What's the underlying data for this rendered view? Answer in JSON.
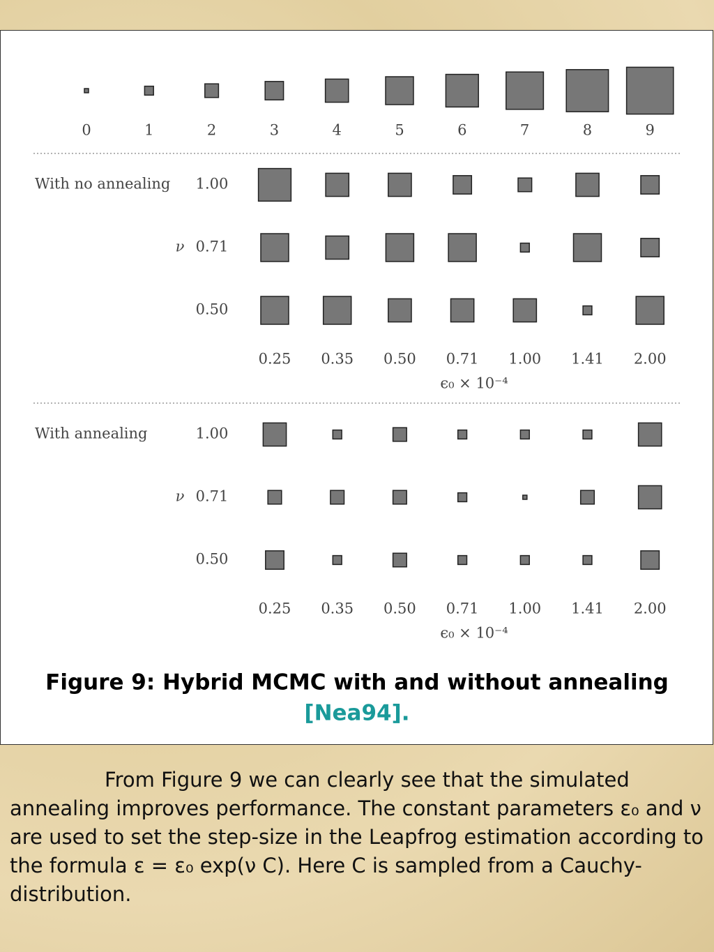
{
  "figure": {
    "legend": {
      "values": [
        0,
        1,
        2,
        3,
        4,
        5,
        6,
        7,
        8,
        9
      ]
    },
    "panels": [
      {
        "label": "With no annealing",
        "nu_symbol": "ν",
        "nu_values": [
          "1.00",
          "0.71",
          "0.50"
        ],
        "eps_values": [
          "0.25",
          "0.35",
          "0.50",
          "0.71",
          "1.00",
          "1.41",
          "2.00"
        ],
        "xlabel": "ϵ₀ × 10⁻⁴",
        "cells": [
          [
            6,
            4,
            4,
            3,
            2,
            4,
            3
          ],
          [
            5,
            4,
            5,
            5,
            1,
            5,
            3
          ],
          [
            5,
            5,
            4,
            4,
            4,
            1,
            5
          ]
        ]
      },
      {
        "label": "With annealing",
        "nu_symbol": "ν",
        "nu_values": [
          "1.00",
          "0.71",
          "0.50"
        ],
        "eps_values": [
          "0.25",
          "0.35",
          "0.50",
          "0.71",
          "1.00",
          "1.41",
          "2.00"
        ],
        "xlabel": "ϵ₀ × 10⁻⁴",
        "cells": [
          [
            4,
            1,
            2,
            1,
            1,
            1,
            4
          ],
          [
            2,
            2,
            2,
            1,
            0,
            2,
            4
          ],
          [
            3,
            1,
            2,
            1,
            1,
            1,
            3
          ]
        ]
      }
    ],
    "caption": "Figure 9: Hybrid MCMC with and without annealing",
    "citation": "[Nea94]."
  },
  "body": {
    "paragraph": "From Figure 9 we can clearly see that the simulated annealing improves performance. The constant parameters ε₀ and ν are used to set the step-size in the Leapfrog estimation according to the formula ε = ε₀ exp(ν C). Here C is sampled from a Cauchy-distribution."
  }
}
